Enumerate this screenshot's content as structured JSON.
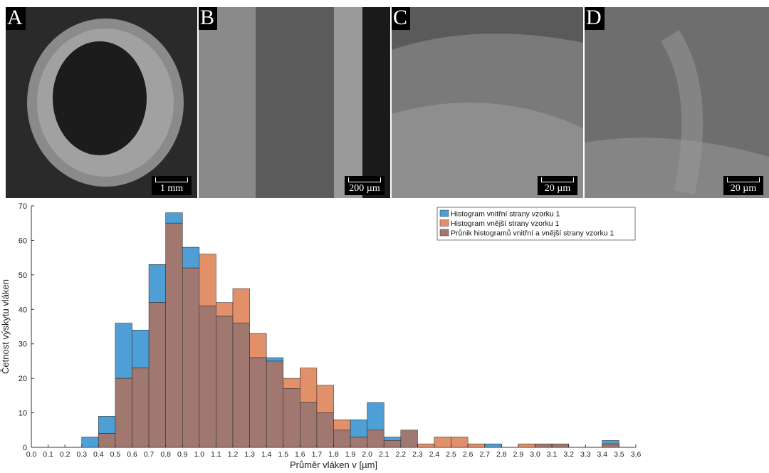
{
  "panels": [
    {
      "label": "A",
      "scale": "1 mm"
    },
    {
      "label": "B",
      "scale": "200 µm"
    },
    {
      "label": "C",
      "scale": "20 µm"
    },
    {
      "label": "D",
      "scale": "20 µm"
    }
  ],
  "chart_data": {
    "type": "bar",
    "xlabel": "Průměr vláken v [µm]",
    "ylabel": "Četnost výskytu vláken",
    "xlim": [
      0,
      3.6
    ],
    "ylim": [
      0,
      70
    ],
    "bin_width": 0.1,
    "x_ticks": [
      "0.0",
      "0.1",
      "0.2",
      "0.3",
      "0.4",
      "0.5",
      "0.6",
      "0.7",
      "0.8",
      "0.9",
      "1.0",
      "1.1",
      "1.2",
      "1.3",
      "1.4",
      "1.5",
      "1.6",
      "1.7",
      "1.8",
      "1.9",
      "2.0",
      "2.1",
      "2.2",
      "2.3",
      "2.4",
      "2.5",
      "2.6",
      "2.7",
      "2.8",
      "2.9",
      "3.0",
      "3.1",
      "3.2",
      "3.3",
      "3.4",
      "3.5",
      "3.6"
    ],
    "y_ticks": [
      0,
      10,
      20,
      30,
      40,
      50,
      60,
      70
    ],
    "bin_starts": [
      0.0,
      0.1,
      0.2,
      0.3,
      0.4,
      0.5,
      0.6,
      0.7,
      0.8,
      0.9,
      1.0,
      1.1,
      1.2,
      1.3,
      1.4,
      1.5,
      1.6,
      1.7,
      1.8,
      1.9,
      2.0,
      2.1,
      2.2,
      2.3,
      2.4,
      2.5,
      2.6,
      2.7,
      2.8,
      2.9,
      3.0,
      3.1,
      3.2,
      3.3,
      3.4,
      3.5
    ],
    "legend_position": "top-right",
    "series": [
      {
        "name": "Histogram vnitřní strany vzorku 1",
        "color": "#4e9fd6",
        "values": [
          0,
          0,
          0,
          3,
          9,
          36,
          34,
          53,
          68,
          58,
          41,
          38,
          36,
          26,
          26,
          17,
          13,
          10,
          5,
          8,
          13,
          3,
          5,
          0,
          0,
          0,
          0,
          1,
          0,
          0,
          1,
          1,
          0,
          0,
          2,
          0
        ]
      },
      {
        "name": "Histogram vnější strany vzorku 1",
        "color": "#e2906a",
        "values": [
          0,
          0,
          0,
          0,
          4,
          20,
          23,
          42,
          65,
          52,
          56,
          42,
          46,
          33,
          25,
          20,
          23,
          18,
          8,
          3,
          5,
          2,
          5,
          1,
          3,
          3,
          1,
          0,
          0,
          1,
          1,
          1,
          0,
          0,
          1,
          0
        ]
      },
      {
        "name": "Průnik histogramů  vnitřní a vnější strany vzorku 1",
        "color": "#a07870"
      }
    ]
  }
}
